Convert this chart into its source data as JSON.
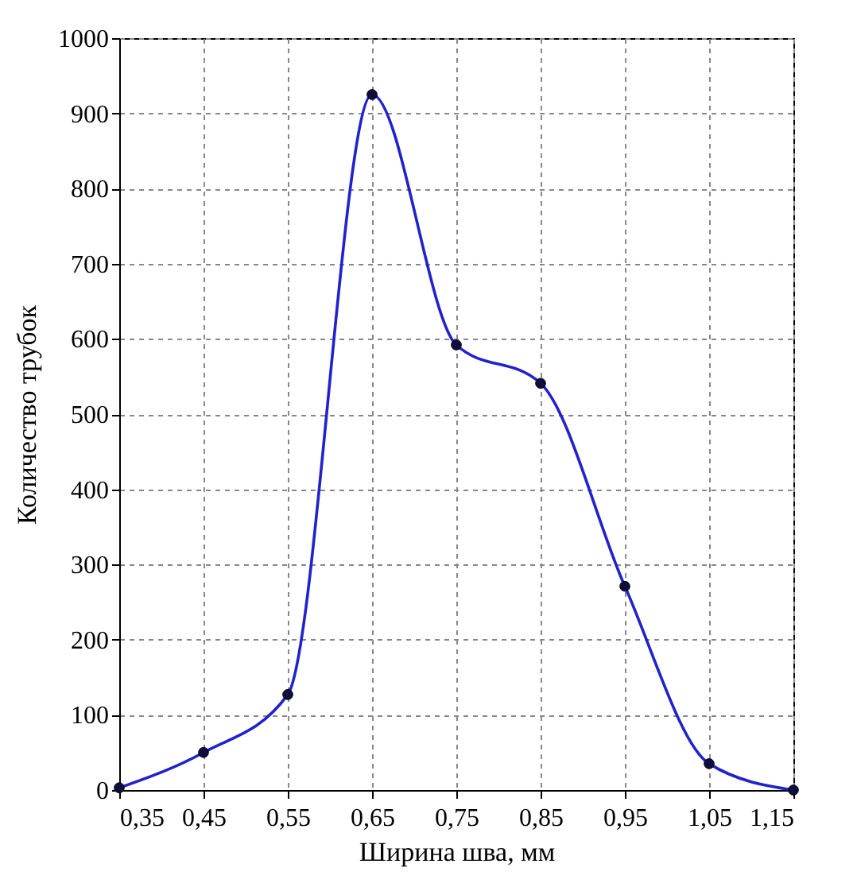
{
  "chart_data": {
    "type": "line",
    "xlabel": "Ширина шва, мм",
    "ylabel": "Количество трубок",
    "x": [
      0.35,
      0.45,
      0.55,
      0.65,
      0.75,
      0.85,
      0.95,
      1.05,
      1.15
    ],
    "series": [
      {
        "color": "#2222cc",
        "values": [
          3,
          50,
          127,
          925,
          592,
          541,
          271,
          35,
          0
        ]
      }
    ],
    "xlim": [
      0.35,
      1.15
    ],
    "xticks": [
      {
        "value": 0.35,
        "label": "0,35"
      },
      {
        "value": 0.45,
        "label": "0,45"
      },
      {
        "value": 0.55,
        "label": "0,55"
      },
      {
        "value": 0.65,
        "label": "0,65"
      },
      {
        "value": 0.75,
        "label": "0,75"
      },
      {
        "value": 0.85,
        "label": "0,85"
      },
      {
        "value": 0.95,
        "label": "0,95"
      },
      {
        "value": 1.05,
        "label": "1,05"
      },
      {
        "value": 1.15,
        "label": "1,15"
      }
    ],
    "ylim": [
      0,
      1000
    ],
    "yticks": [
      0,
      100,
      200,
      300,
      400,
      500,
      600,
      700,
      800,
      900,
      1000
    ],
    "grid": true,
    "marker": "circle",
    "line_style": "solid"
  }
}
